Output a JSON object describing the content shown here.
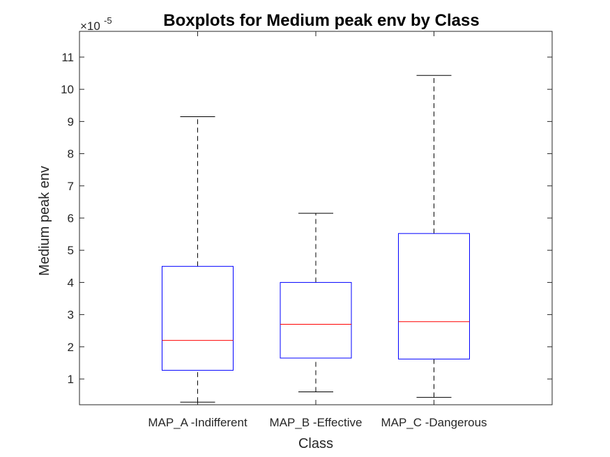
{
  "chart_data": {
    "type": "boxplot",
    "title": "Boxplots for Medium peak env by Class",
    "xlabel": "Class",
    "ylabel": "Medium peak env",
    "y_exponent_label": "×10",
    "y_exponent_power": "-5",
    "ylim": [
      0.2,
      11.8
    ],
    "yticks": [
      1,
      2,
      3,
      4,
      5,
      6,
      7,
      8,
      9,
      10,
      11
    ],
    "categories": [
      "MAP_A -Indifferent",
      "MAP_B -Effective",
      "MAP_C -Dangerous"
    ],
    "boxes": [
      {
        "whisker_low": 0.28,
        "q1": 1.27,
        "median": 2.2,
        "q3": 4.5,
        "whisker_high": 9.15
      },
      {
        "whisker_low": 0.6,
        "q1": 1.65,
        "median": 2.7,
        "q3": 4.0,
        "whisker_high": 6.15
      },
      {
        "whisker_low": 0.43,
        "q1": 1.62,
        "median": 2.78,
        "q3": 5.52,
        "whisker_high": 10.43
      }
    ],
    "colors": {
      "box": "#0000ff",
      "median": "#ff0000",
      "whisker": "#000000",
      "axis": "#262626"
    }
  }
}
